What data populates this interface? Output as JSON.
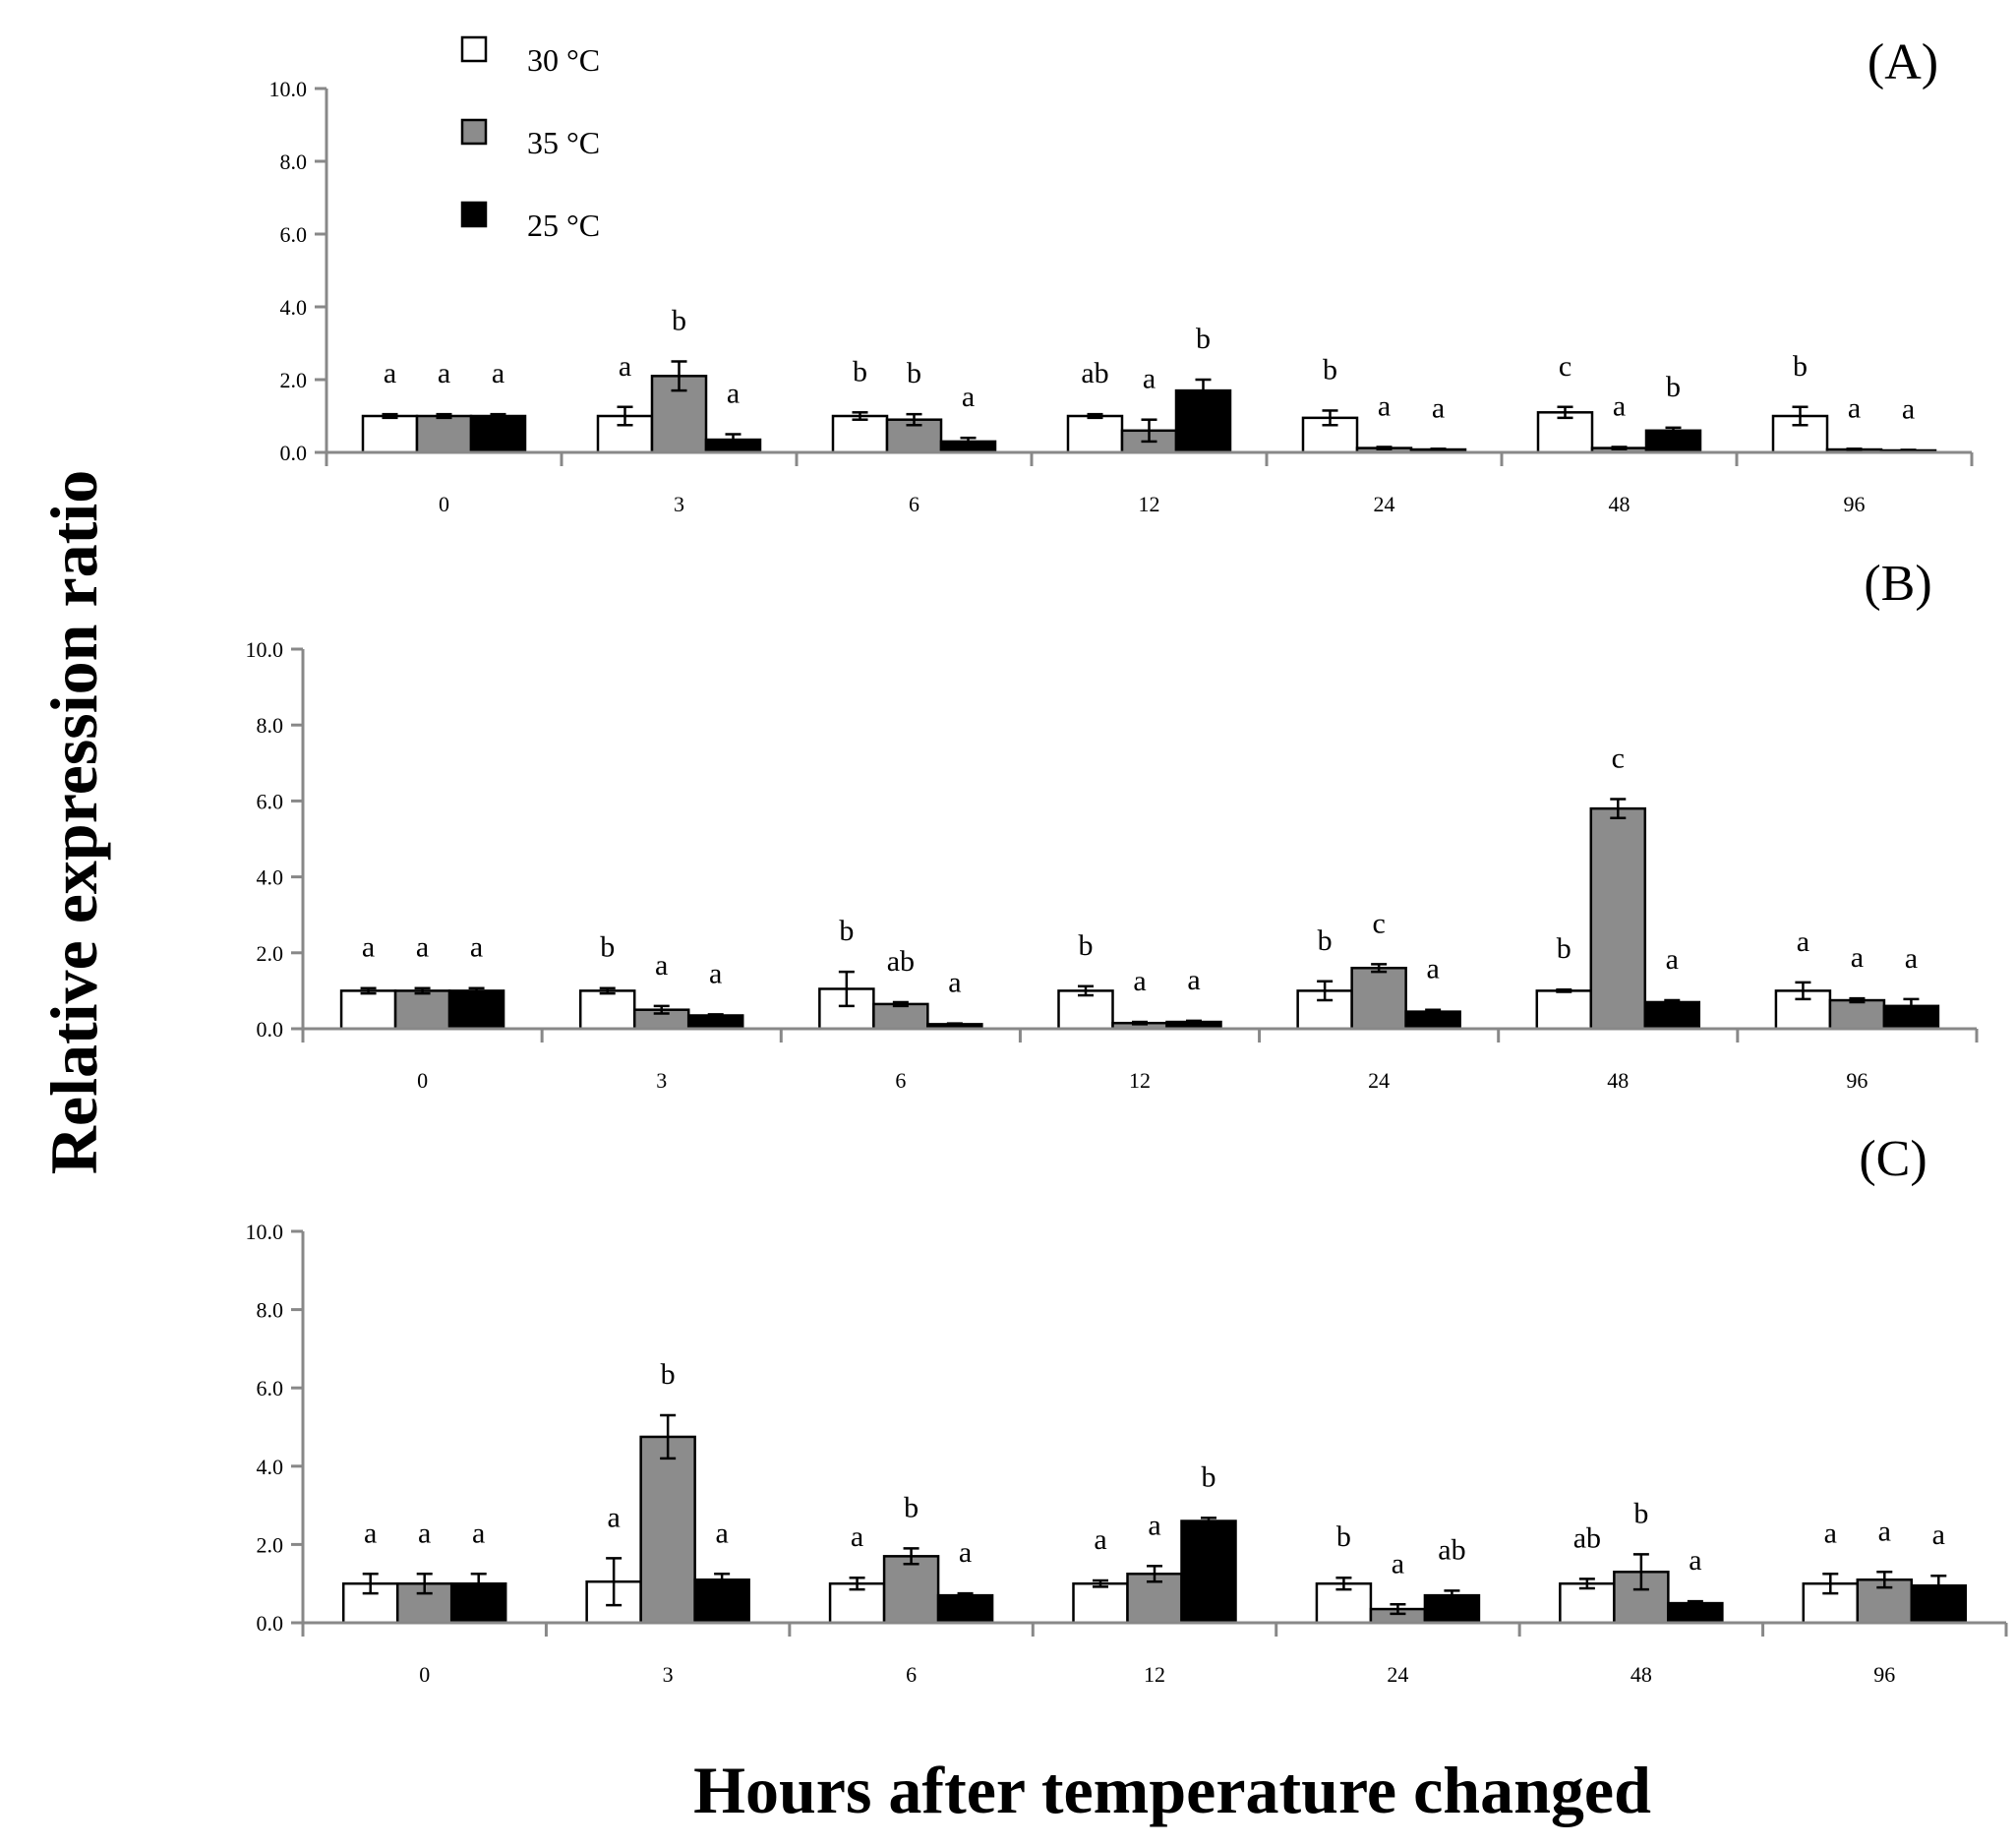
{
  "figure": {
    "y_axis_title": "Relative expression ratio",
    "x_axis_title": "Hours after temperature changed"
  },
  "legend": [
    {
      "label": "30 °C",
      "color": "#ffffff"
    },
    {
      "label": "35 °C",
      "color": "#8c8c8c"
    },
    {
      "label": "25 °C",
      "color": "#000000"
    }
  ],
  "chart_data": [
    {
      "type": "bar",
      "panel": "(A)",
      "categories": [
        "0",
        "3",
        "6",
        "12",
        "24",
        "48",
        "96"
      ],
      "ylim": [
        0,
        10
      ],
      "yticks": [
        "0.0",
        "2.0",
        "4.0",
        "6.0",
        "8.0",
        "10.0"
      ],
      "series": [
        {
          "name": "30 °C",
          "values": [
            1.0,
            1.0,
            1.0,
            1.0,
            0.95,
            1.1,
            1.0
          ],
          "errors": [
            0.05,
            0.25,
            0.1,
            0.05,
            0.2,
            0.15,
            0.25
          ],
          "letters": [
            "a",
            "a",
            "b",
            "ab",
            "b",
            "c",
            "b"
          ]
        },
        {
          "name": "35 °C",
          "values": [
            1.0,
            2.1,
            0.9,
            0.6,
            0.12,
            0.12,
            0.08
          ],
          "errors": [
            0.05,
            0.4,
            0.15,
            0.3,
            0.03,
            0.03,
            0.02
          ],
          "letters": [
            "a",
            "b",
            "b",
            "a",
            "a",
            "a",
            "a"
          ]
        },
        {
          "name": "25 °C",
          "values": [
            1.0,
            0.35,
            0.3,
            1.7,
            0.08,
            0.6,
            0.05
          ],
          "errors": [
            0.05,
            0.15,
            0.1,
            0.3,
            0.02,
            0.08,
            0.02
          ],
          "letters": [
            "a",
            "a",
            "a",
            "b",
            "a",
            "b",
            "a"
          ]
        }
      ]
    },
    {
      "type": "bar",
      "panel": "(B)",
      "categories": [
        "0",
        "3",
        "6",
        "12",
        "24",
        "48",
        "96"
      ],
      "ylim": [
        0,
        10
      ],
      "yticks": [
        "0.0",
        "2.0",
        "4.0",
        "6.0",
        "8.0",
        "10.0"
      ],
      "series": [
        {
          "name": "30 °C",
          "values": [
            1.0,
            1.0,
            1.05,
            1.0,
            1.0,
            1.0,
            1.0
          ],
          "errors": [
            0.07,
            0.07,
            0.45,
            0.12,
            0.25,
            0.03,
            0.22
          ],
          "letters": [
            "a",
            "b",
            "b",
            "b",
            "b",
            "b",
            "a"
          ]
        },
        {
          "name": "35 °C",
          "values": [
            1.0,
            0.5,
            0.65,
            0.15,
            1.6,
            5.8,
            0.75
          ],
          "errors": [
            0.07,
            0.1,
            0.05,
            0.03,
            0.1,
            0.25,
            0.05
          ],
          "letters": [
            "a",
            "a",
            "ab",
            "a",
            "c",
            "c",
            "a"
          ]
        },
        {
          "name": "25 °C",
          "values": [
            1.0,
            0.35,
            0.12,
            0.18,
            0.45,
            0.7,
            0.6
          ],
          "errors": [
            0.07,
            0.03,
            0.02,
            0.03,
            0.05,
            0.05,
            0.18
          ],
          "letters": [
            "a",
            "a",
            "a",
            "a",
            "a",
            "a",
            "a"
          ]
        }
      ]
    },
    {
      "type": "bar",
      "panel": "(C)",
      "categories": [
        "0",
        "3",
        "6",
        "12",
        "24",
        "48",
        "96"
      ],
      "ylim": [
        0,
        10
      ],
      "yticks": [
        "0.0",
        "2.0",
        "4.0",
        "6.0",
        "8.0",
        "10.0"
      ],
      "series": [
        {
          "name": "30 °C",
          "values": [
            1.0,
            1.05,
            1.0,
            1.0,
            1.0,
            1.0,
            1.0
          ],
          "errors": [
            0.25,
            0.6,
            0.15,
            0.08,
            0.15,
            0.12,
            0.25
          ],
          "letters": [
            "a",
            "a",
            "a",
            "a",
            "b",
            "ab",
            "a"
          ]
        },
        {
          "name": "35 °C",
          "values": [
            1.0,
            4.75,
            1.7,
            1.25,
            0.35,
            1.3,
            1.1
          ],
          "errors": [
            0.25,
            0.55,
            0.2,
            0.2,
            0.12,
            0.45,
            0.2
          ],
          "letters": [
            "a",
            "b",
            "b",
            "a",
            "a",
            "b",
            "a"
          ]
        },
        {
          "name": "25 °C",
          "values": [
            1.0,
            1.1,
            0.7,
            2.6,
            0.7,
            0.5,
            0.95
          ],
          "errors": [
            0.25,
            0.15,
            0.05,
            0.08,
            0.12,
            0.05,
            0.25
          ],
          "letters": [
            "a",
            "a",
            "a",
            "b",
            "ab",
            "a",
            "a"
          ]
        }
      ]
    }
  ]
}
